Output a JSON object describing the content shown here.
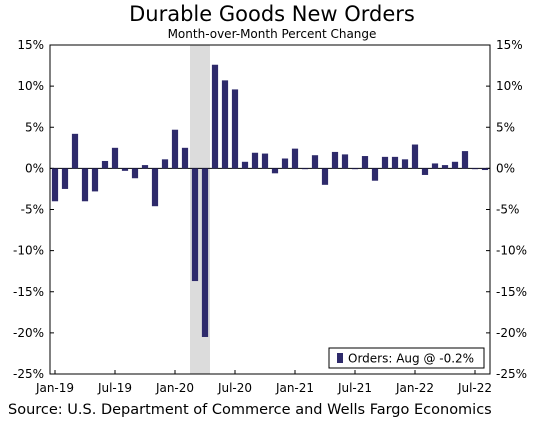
{
  "chart_data": {
    "type": "bar",
    "title": "Durable Goods New Orders",
    "subtitle": "Month-over-Month Percent Change",
    "source": "Source: U.S. Department of Commerce and Wells Fargo Economics",
    "ylim": [
      -25,
      15
    ],
    "y_ticks": [
      "15%",
      "10%",
      "5%",
      "0%",
      "-5%",
      "-10%",
      "-15%",
      "-20%",
      "-25%"
    ],
    "x_tick_labels": [
      "Jan-19",
      "Jul-19",
      "Jan-20",
      "Jul-20",
      "Jan-21",
      "Jul-21",
      "Jan-22",
      "Jul-22"
    ],
    "legend": "Orders: Aug @ -0.2%",
    "bar_color": "#2e2a6b",
    "shade_color": "#dcdcdc",
    "recession_shade": [
      "Mar-20",
      "Apr-20"
    ],
    "categories": [
      "Jan-19",
      "Feb-19",
      "Mar-19",
      "Apr-19",
      "May-19",
      "Jun-19",
      "Jul-19",
      "Aug-19",
      "Sep-19",
      "Oct-19",
      "Nov-19",
      "Dec-19",
      "Jan-20",
      "Feb-20",
      "Mar-20",
      "Apr-20",
      "May-20",
      "Jun-20",
      "Jul-20",
      "Aug-20",
      "Sep-20",
      "Oct-20",
      "Nov-20",
      "Dec-20",
      "Jan-21",
      "Feb-21",
      "Mar-21",
      "Apr-21",
      "May-21",
      "Jun-21",
      "Jul-21",
      "Aug-21",
      "Sep-21",
      "Oct-21",
      "Nov-21",
      "Dec-21",
      "Jan-22",
      "Feb-22",
      "Mar-22",
      "Apr-22",
      "May-22",
      "Jun-22",
      "Jul-22",
      "Aug-22"
    ],
    "values": [
      -4.0,
      -2.5,
      4.2,
      -4.0,
      -2.8,
      0.9,
      2.5,
      -0.3,
      -1.2,
      0.4,
      -4.6,
      1.1,
      4.7,
      2.5,
      -13.7,
      -20.5,
      12.6,
      10.7,
      9.6,
      0.8,
      1.9,
      1.8,
      -0.6,
      1.2,
      2.4,
      -0.1,
      1.6,
      -2.0,
      2.0,
      1.7,
      -0.1,
      1.5,
      -1.5,
      1.4,
      1.4,
      1.1,
      2.9,
      -0.8,
      0.6,
      0.4,
      0.8,
      2.1,
      -0.1,
      -0.2
    ]
  }
}
